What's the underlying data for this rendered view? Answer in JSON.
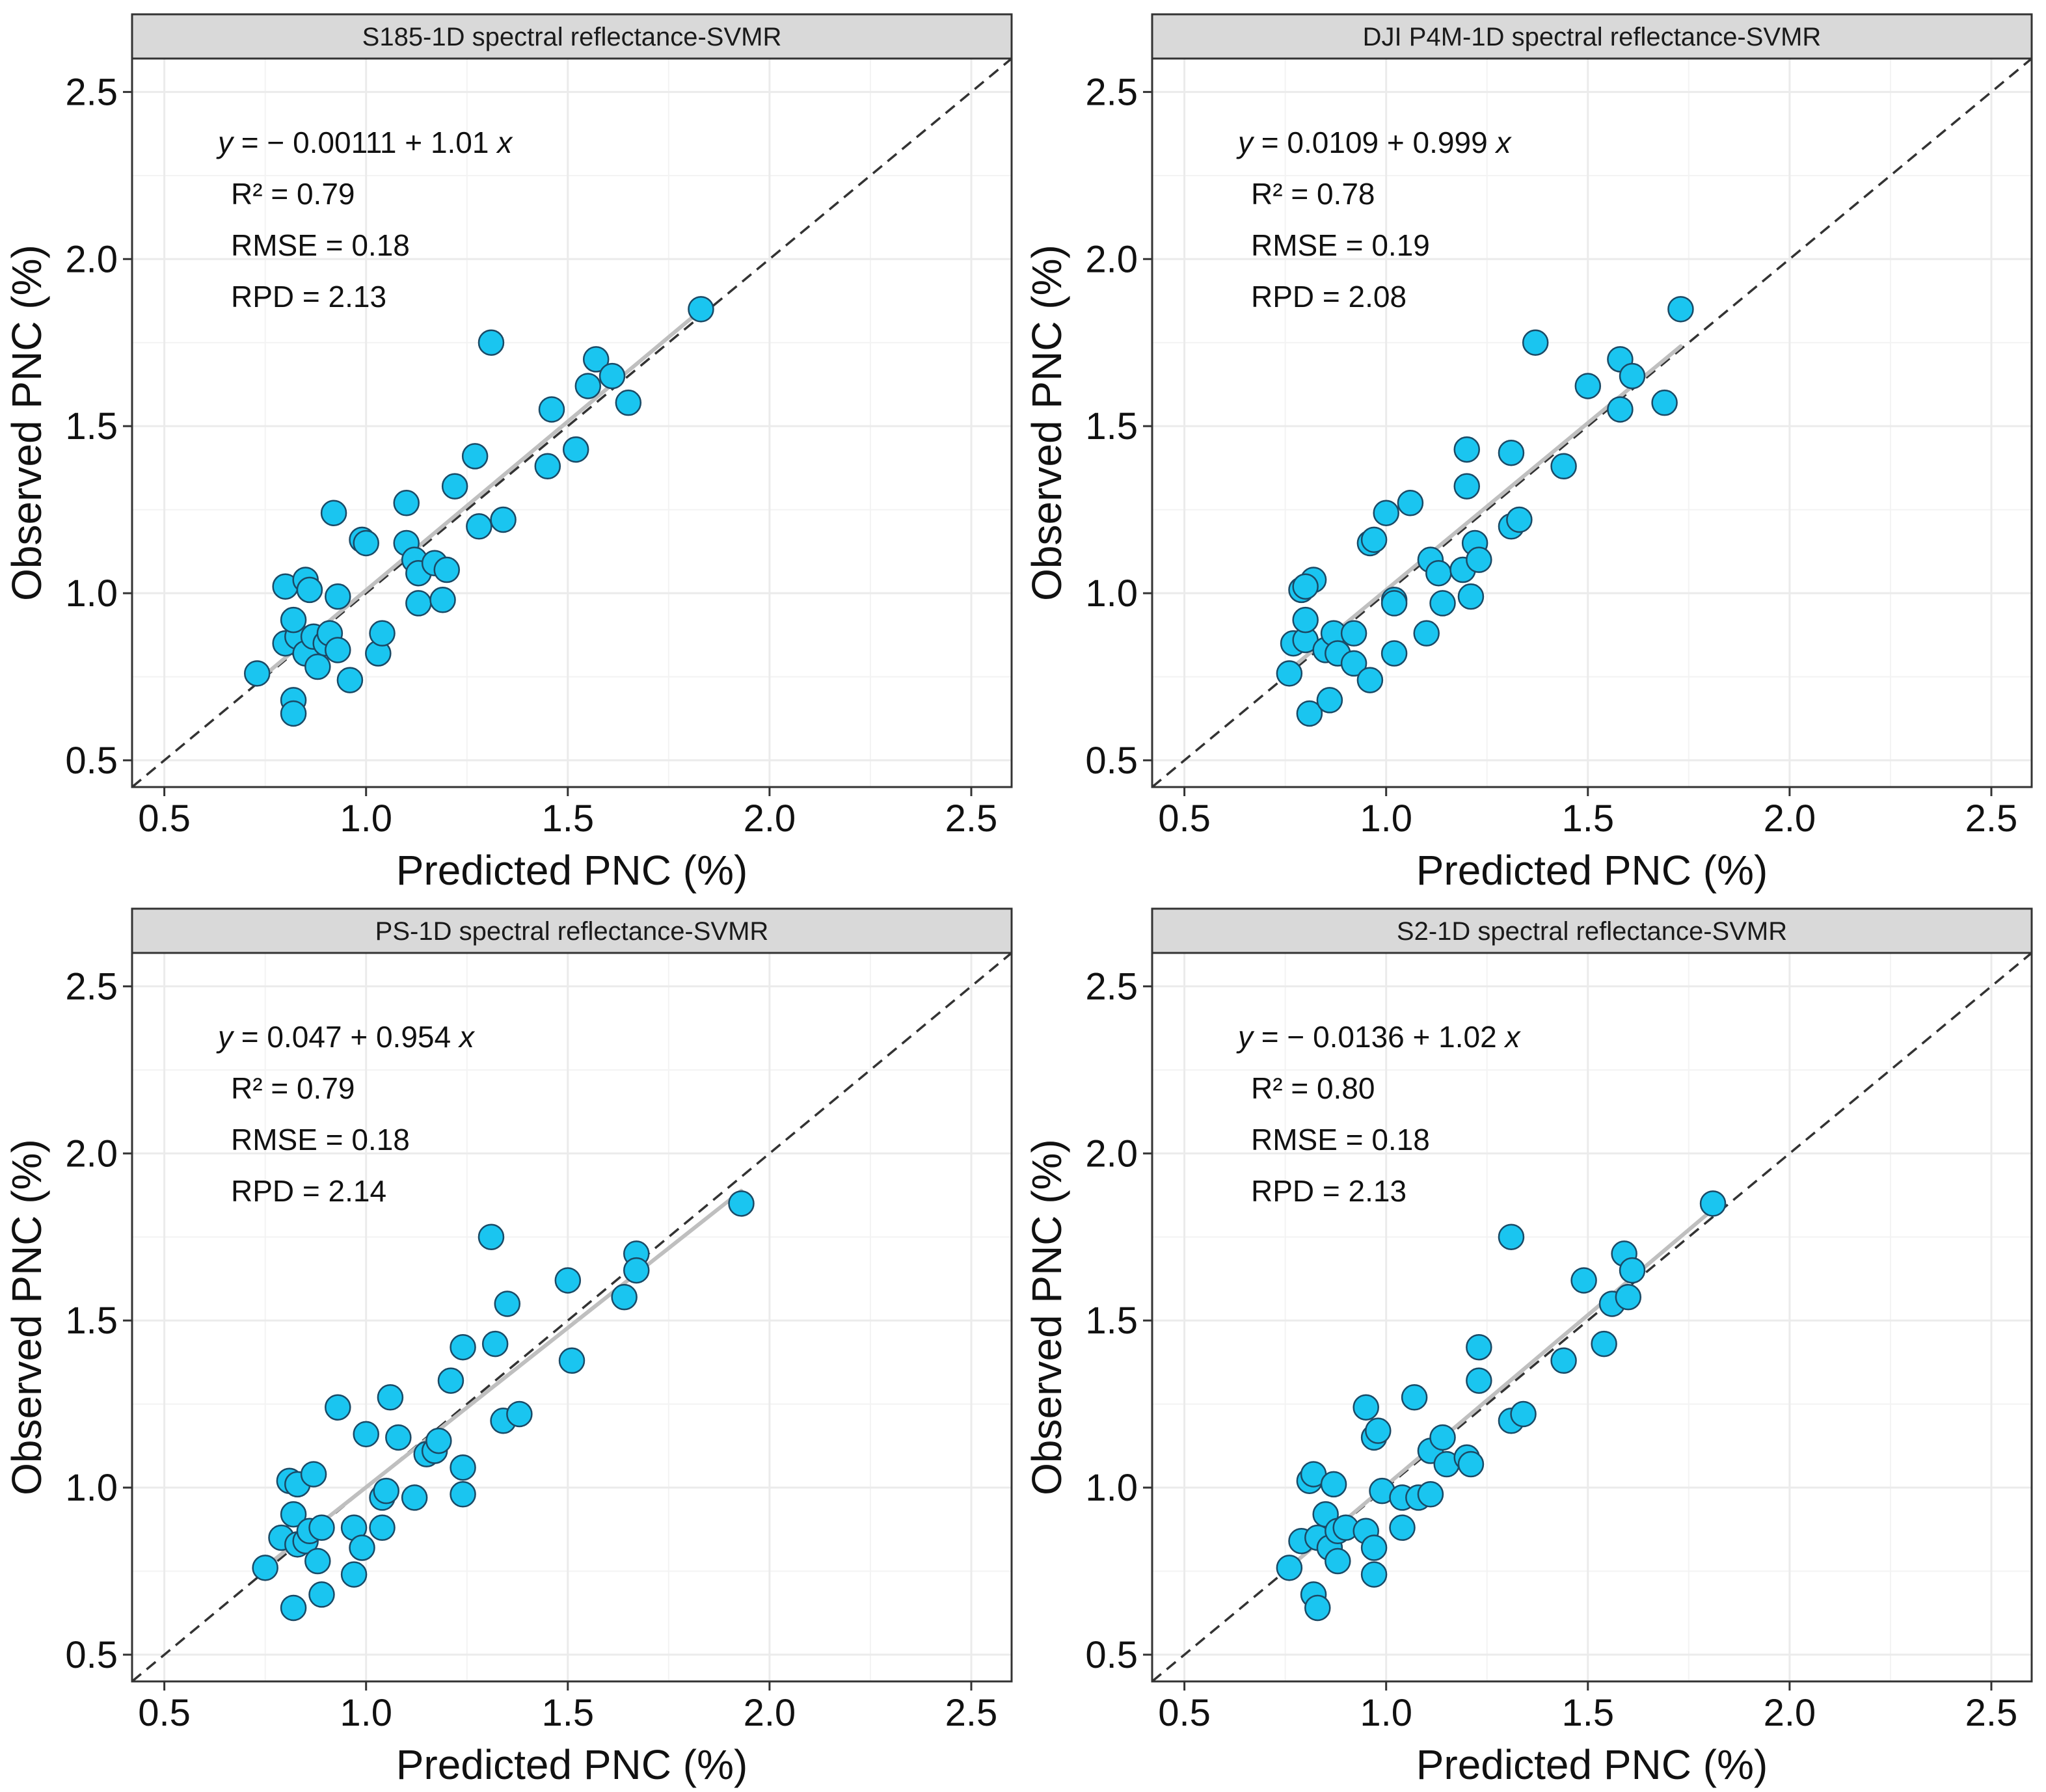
{
  "colors": {
    "point_fill": "#1AC5F0",
    "point_stroke": "#1a4a66",
    "fit_line": "#bfbfbf",
    "identity_line": "#333333",
    "strip_fill": "#d9d9d9",
    "grid": "#ebebeb"
  },
  "chart_data": [
    {
      "type": "scatter",
      "title": "S185-1D spectral reflectance-SVMR",
      "xlabel": "Predicted PNC (%)",
      "ylabel": "Observed PNC (%)",
      "xlim": [
        0.42,
        2.6
      ],
      "ylim": [
        0.42,
        2.6
      ],
      "ticks": [
        "0.5",
        "1.0",
        "1.5",
        "2.0",
        "2.5"
      ],
      "grid": true,
      "annotation": {
        "equation_prefix": "y",
        "equation_body": " = − 0.00111 + 1.01 ",
        "equation_var": "x",
        "r2": "R² =  0.79",
        "rmse": "RMSE =  0.18",
        "rpd": "RPD =  2.13"
      },
      "fit": {
        "intercept": -0.00111,
        "slope": 1.01,
        "x_range": [
          0.73,
          1.83
        ]
      },
      "points": [
        [
          0.73,
          0.76
        ],
        [
          0.82,
          0.68
        ],
        [
          0.82,
          0.64
        ],
        [
          0.8,
          0.85
        ],
        [
          0.83,
          0.87
        ],
        [
          0.85,
          0.82
        ],
        [
          0.88,
          0.78
        ],
        [
          0.87,
          0.87
        ],
        [
          0.9,
          0.85
        ],
        [
          0.91,
          0.88
        ],
        [
          0.93,
          0.83
        ],
        [
          0.96,
          0.74
        ],
        [
          0.82,
          0.92
        ],
        [
          0.8,
          1.02
        ],
        [
          0.85,
          1.04
        ],
        [
          0.86,
          1.01
        ],
        [
          0.93,
          0.99
        ],
        [
          0.92,
          1.24
        ],
        [
          0.99,
          1.16
        ],
        [
          1.0,
          1.15
        ],
        [
          1.03,
          0.82
        ],
        [
          1.04,
          0.88
        ],
        [
          1.1,
          1.27
        ],
        [
          1.1,
          1.15
        ],
        [
          1.12,
          1.1
        ],
        [
          1.13,
          1.06
        ],
        [
          1.13,
          0.97
        ],
        [
          1.17,
          1.09
        ],
        [
          1.2,
          1.07
        ],
        [
          1.19,
          0.98
        ],
        [
          1.22,
          1.32
        ],
        [
          1.27,
          1.41
        ],
        [
          1.28,
          1.2
        ],
        [
          1.31,
          1.75
        ],
        [
          1.34,
          1.22
        ],
        [
          1.45,
          1.38
        ],
        [
          1.46,
          1.55
        ],
        [
          1.52,
          1.43
        ],
        [
          1.55,
          1.62
        ],
        [
          1.57,
          1.7
        ],
        [
          1.61,
          1.65
        ],
        [
          1.65,
          1.57
        ],
        [
          1.83,
          1.85
        ]
      ]
    },
    {
      "type": "scatter",
      "title": "DJI P4M-1D spectral reflectance-SVMR",
      "xlabel": "Predicted PNC (%)",
      "ylabel": "Observed PNC (%)",
      "xlim": [
        0.42,
        2.6
      ],
      "ylim": [
        0.42,
        2.6
      ],
      "ticks": [
        "0.5",
        "1.0",
        "1.5",
        "2.0",
        "2.5"
      ],
      "grid": true,
      "annotation": {
        "equation_prefix": "y",
        "equation_body": " = 0.0109 + 0.999 ",
        "equation_var": "x",
        "r2": "R² =  0.78",
        "rmse": "RMSE =  0.19",
        "rpd": "RPD =  2.08"
      },
      "fit": {
        "intercept": 0.0109,
        "slope": 0.999,
        "x_range": [
          0.76,
          1.73
        ]
      },
      "points": [
        [
          0.76,
          0.76
        ],
        [
          0.77,
          0.85
        ],
        [
          0.8,
          0.86
        ],
        [
          0.81,
          0.64
        ],
        [
          0.86,
          0.68
        ],
        [
          0.85,
          0.83
        ],
        [
          0.87,
          0.88
        ],
        [
          0.88,
          0.82
        ],
        [
          0.92,
          0.88
        ],
        [
          0.92,
          0.79
        ],
        [
          0.96,
          0.74
        ],
        [
          0.8,
          0.92
        ],
        [
          0.79,
          1.01
        ],
        [
          0.82,
          1.04
        ],
        [
          0.8,
          1.02
        ],
        [
          0.96,
          1.15
        ],
        [
          0.97,
          1.16
        ],
        [
          1.0,
          1.24
        ],
        [
          1.02,
          0.98
        ],
        [
          1.02,
          0.97
        ],
        [
          1.02,
          0.82
        ],
        [
          1.06,
          1.27
        ],
        [
          1.1,
          0.88
        ],
        [
          1.11,
          1.1
        ],
        [
          1.13,
          1.06
        ],
        [
          1.14,
          0.97
        ],
        [
          1.19,
          1.07
        ],
        [
          1.2,
          1.32
        ],
        [
          1.21,
          0.99
        ],
        [
          1.22,
          1.15
        ],
        [
          1.23,
          1.1
        ],
        [
          1.2,
          1.43
        ],
        [
          1.31,
          1.42
        ],
        [
          1.31,
          1.2
        ],
        [
          1.33,
          1.22
        ],
        [
          1.37,
          1.75
        ],
        [
          1.44,
          1.38
        ],
        [
          1.5,
          1.62
        ],
        [
          1.58,
          1.55
        ],
        [
          1.58,
          1.7
        ],
        [
          1.61,
          1.65
        ],
        [
          1.69,
          1.57
        ],
        [
          1.73,
          1.85
        ]
      ]
    },
    {
      "type": "scatter",
      "title": "PS-1D spectral reflectance-SVMR",
      "xlabel": "Predicted PNC (%)",
      "ylabel": "Observed PNC (%)",
      "xlim": [
        0.42,
        2.6
      ],
      "ylim": [
        0.42,
        2.6
      ],
      "ticks": [
        "0.5",
        "1.0",
        "1.5",
        "2.0",
        "2.5"
      ],
      "grid": true,
      "annotation": {
        "equation_prefix": "y",
        "equation_body": " = 0.047 + 0.954 ",
        "equation_var": "x",
        "r2": "R² =  0.79",
        "rmse": "RMSE =  0.18",
        "rpd": "RPD =  2.14"
      },
      "fit": {
        "intercept": 0.047,
        "slope": 0.954,
        "x_range": [
          0.75,
          1.93
        ]
      },
      "points": [
        [
          0.75,
          0.76
        ],
        [
          0.82,
          0.64
        ],
        [
          0.89,
          0.68
        ],
        [
          0.79,
          0.85
        ],
        [
          0.82,
          0.92
        ],
        [
          0.83,
          0.83
        ],
        [
          0.85,
          0.84
        ],
        [
          0.86,
          0.87
        ],
        [
          0.88,
          0.78
        ],
        [
          0.89,
          0.88
        ],
        [
          0.97,
          0.88
        ],
        [
          0.97,
          0.74
        ],
        [
          0.99,
          0.82
        ],
        [
          1.04,
          0.88
        ],
        [
          0.81,
          1.02
        ],
        [
          0.83,
          1.01
        ],
        [
          0.87,
          1.04
        ],
        [
          0.93,
          1.24
        ],
        [
          1.0,
          1.16
        ],
        [
          1.04,
          0.97
        ],
        [
          1.05,
          0.99
        ],
        [
          1.06,
          1.27
        ],
        [
          1.08,
          1.15
        ],
        [
          1.12,
          0.97
        ],
        [
          1.15,
          1.1
        ],
        [
          1.17,
          1.11
        ],
        [
          1.18,
          1.14
        ],
        [
          1.21,
          1.32
        ],
        [
          1.24,
          1.06
        ],
        [
          1.24,
          0.98
        ],
        [
          1.24,
          1.42
        ],
        [
          1.31,
          1.75
        ],
        [
          1.32,
          1.43
        ],
        [
          1.34,
          1.2
        ],
        [
          1.35,
          1.55
        ],
        [
          1.38,
          1.22
        ],
        [
          1.5,
          1.62
        ],
        [
          1.51,
          1.38
        ],
        [
          1.64,
          1.57
        ],
        [
          1.67,
          1.7
        ],
        [
          1.67,
          1.65
        ],
        [
          1.93,
          1.85
        ]
      ]
    },
    {
      "type": "scatter",
      "title": "S2-1D spectral reflectance-SVMR",
      "xlabel": "Predicted PNC (%)",
      "ylabel": "Observed PNC (%)",
      "xlim": [
        0.42,
        2.6
      ],
      "ylim": [
        0.42,
        2.6
      ],
      "ticks": [
        "0.5",
        "1.0",
        "1.5",
        "2.0",
        "2.5"
      ],
      "grid": true,
      "annotation": {
        "equation_prefix": "y",
        "equation_body": " = − 0.0136 + 1.02 ",
        "equation_var": "x",
        "r2": "R² =  0.80",
        "rmse": "RMSE =  0.18",
        "rpd": "RPD =  2.13"
      },
      "fit": {
        "intercept": -0.0136,
        "slope": 1.02,
        "x_range": [
          0.76,
          1.81
        ]
      },
      "points": [
        [
          0.76,
          0.76
        ],
        [
          0.79,
          0.84
        ],
        [
          0.82,
          0.68
        ],
        [
          0.83,
          0.64
        ],
        [
          0.83,
          0.85
        ],
        [
          0.85,
          0.92
        ],
        [
          0.86,
          0.82
        ],
        [
          0.88,
          0.87
        ],
        [
          0.88,
          0.78
        ],
        [
          0.9,
          0.88
        ],
        [
          0.95,
          0.87
        ],
        [
          0.97,
          0.74
        ],
        [
          0.97,
          0.82
        ],
        [
          0.81,
          1.02
        ],
        [
          0.82,
          1.04
        ],
        [
          0.87,
          1.01
        ],
        [
          0.95,
          1.24
        ],
        [
          0.97,
          1.15
        ],
        [
          0.98,
          1.17
        ],
        [
          0.99,
          0.99
        ],
        [
          1.04,
          0.97
        ],
        [
          1.04,
          0.88
        ],
        [
          1.07,
          1.27
        ],
        [
          1.08,
          0.97
        ],
        [
          1.11,
          0.98
        ],
        [
          1.11,
          1.11
        ],
        [
          1.14,
          1.15
        ],
        [
          1.15,
          1.07
        ],
        [
          1.2,
          1.09
        ],
        [
          1.21,
          1.07
        ],
        [
          1.23,
          1.32
        ],
        [
          1.23,
          1.42
        ],
        [
          1.31,
          1.2
        ],
        [
          1.31,
          1.75
        ],
        [
          1.34,
          1.22
        ],
        [
          1.44,
          1.38
        ],
        [
          1.49,
          1.62
        ],
        [
          1.54,
          1.43
        ],
        [
          1.56,
          1.55
        ],
        [
          1.59,
          1.7
        ],
        [
          1.6,
          1.57
        ],
        [
          1.61,
          1.65
        ],
        [
          1.81,
          1.85
        ]
      ]
    }
  ]
}
